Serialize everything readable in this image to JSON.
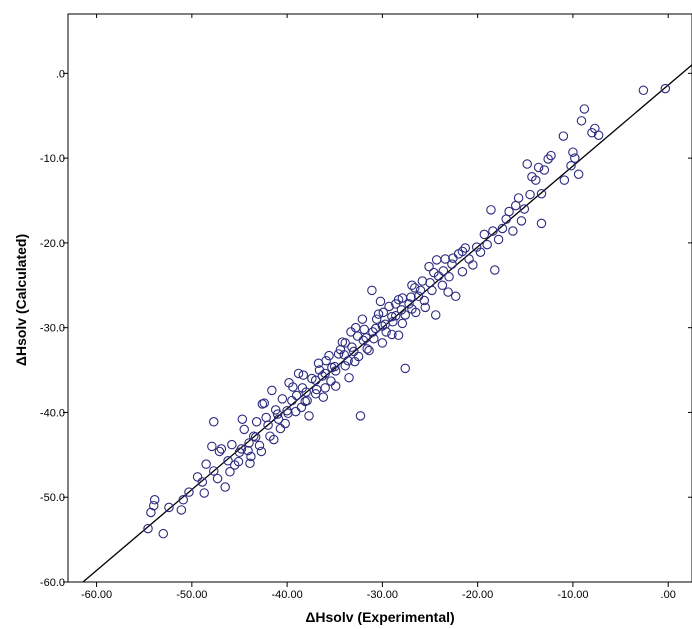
{
  "chart_data": {
    "type": "scatter",
    "xlabel": "ΔHsolv (Experimental)",
    "ylabel": "ΔHsolv (Calculated)",
    "xlim": [
      -63,
      2.5
    ],
    "ylim": [
      -60,
      7
    ],
    "x_ticks": [
      -60,
      -50,
      -40,
      -30,
      -20,
      -10,
      0
    ],
    "x_tick_labels": [
      "-60.00",
      "-50.00",
      "-40.00",
      "-30.00",
      "-20.00",
      "-10.00",
      ".00"
    ],
    "y_ticks": [
      0,
      -10,
      -20,
      -30,
      -40,
      -50,
      -60
    ],
    "y_tick_labels": [
      ".0",
      "-10.0",
      "-20.0",
      "-30.0",
      "-40.0",
      "-50.0",
      "-60.0"
    ],
    "fit_line": {
      "x": [
        -63,
        2.5
      ],
      "y": [
        -61.5,
        1.0
      ]
    },
    "marker": "open-circle",
    "marker_color": "#2b2b7f",
    "line_color": "#000000",
    "background": "#ffffff",
    "grid": false,
    "series": [
      {
        "points": [
          [
            -54.6,
            -53.7
          ],
          [
            -54.3,
            -51.8
          ],
          [
            -54.0,
            -51.0
          ],
          [
            -53.9,
            -50.3
          ],
          [
            -53.0,
            -54.3
          ],
          [
            -52.4,
            -51.2
          ],
          [
            -51.1,
            -51.5
          ],
          [
            -50.9,
            -50.3
          ],
          [
            -50.3,
            -49.4
          ],
          [
            -49.4,
            -47.6
          ],
          [
            -48.9,
            -48.2
          ],
          [
            -48.7,
            -49.5
          ],
          [
            -48.5,
            -46.1
          ],
          [
            -47.7,
            -46.9
          ],
          [
            -47.3,
            -47.8
          ],
          [
            -47.9,
            -44.0
          ],
          [
            -47.7,
            -41.1
          ],
          [
            -47.1,
            -44.6
          ],
          [
            -46.9,
            -44.3
          ],
          [
            -46.5,
            -48.8
          ],
          [
            -46.0,
            -47.0
          ],
          [
            -45.8,
            -43.8
          ],
          [
            -45.5,
            -46.2
          ],
          [
            -45.1,
            -45.8
          ],
          [
            -44.8,
            -44.3
          ],
          [
            -44.5,
            -42.0
          ],
          [
            -44.1,
            -44.5
          ],
          [
            -43.9,
            -46.0
          ],
          [
            -43.5,
            -42.8
          ],
          [
            -43.2,
            -41.1
          ],
          [
            -42.9,
            -43.9
          ],
          [
            -42.6,
            -39.0
          ],
          [
            -42.2,
            -40.6
          ],
          [
            -41.8,
            -42.8
          ],
          [
            -41.6,
            -37.4
          ],
          [
            -41.2,
            -39.7
          ],
          [
            -40.9,
            -40.8
          ],
          [
            -40.5,
            -38.4
          ],
          [
            -40.2,
            -41.3
          ],
          [
            -39.8,
            -36.5
          ],
          [
            -39.5,
            -38.6
          ],
          [
            -39.1,
            -39.9
          ],
          [
            -38.8,
            -35.4
          ],
          [
            -38.4,
            -37.1
          ],
          [
            -38.1,
            -38.7
          ],
          [
            -37.7,
            -40.4
          ],
          [
            -37.4,
            -36.0
          ],
          [
            -37.0,
            -37.8
          ],
          [
            -36.7,
            -34.2
          ],
          [
            -36.3,
            -35.7
          ],
          [
            -36.0,
            -37.1
          ],
          [
            -35.6,
            -33.3
          ],
          [
            -35.3,
            -34.7
          ],
          [
            -34.9,
            -36.9
          ],
          [
            -34.6,
            -33.1
          ],
          [
            -34.2,
            -31.7
          ],
          [
            -33.9,
            -34.5
          ],
          [
            -33.5,
            -35.9
          ],
          [
            -33.2,
            -32.3
          ],
          [
            -32.8,
            -30.0
          ],
          [
            -32.5,
            -33.4
          ],
          [
            -32.3,
            -40.4
          ],
          [
            -32.1,
            -29.0
          ],
          [
            -31.7,
            -31.2
          ],
          [
            -31.4,
            -32.7
          ],
          [
            -31.1,
            -25.6
          ],
          [
            -30.7,
            -30.1
          ],
          [
            -30.4,
            -28.4
          ],
          [
            -30.0,
            -31.8
          ],
          [
            -29.7,
            -29.6
          ],
          [
            -29.3,
            -27.5
          ],
          [
            -29.0,
            -30.8
          ],
          [
            -28.6,
            -28.6
          ],
          [
            -28.3,
            -26.7
          ],
          [
            -27.9,
            -29.5
          ],
          [
            -27.6,
            -34.8
          ],
          [
            -27.2,
            -27.2
          ],
          [
            -26.9,
            -25.0
          ],
          [
            -26.5,
            -28.2
          ],
          [
            -26.2,
            -26.3
          ],
          [
            -25.8,
            -24.5
          ],
          [
            -25.5,
            -27.6
          ],
          [
            -25.1,
            -22.8
          ],
          [
            -24.8,
            -25.6
          ],
          [
            -24.4,
            -28.5
          ],
          [
            -24.1,
            -23.9
          ],
          [
            -23.7,
            -25.0
          ],
          [
            -23.4,
            -21.9
          ],
          [
            -23.0,
            -24.0
          ],
          [
            -22.7,
            -22.5
          ],
          [
            -22.3,
            -26.3
          ],
          [
            -22.0,
            -21.3
          ],
          [
            -21.6,
            -23.4
          ],
          [
            -21.3,
            -20.6
          ],
          [
            -20.9,
            -21.9
          ],
          [
            -20.5,
            -22.6
          ],
          [
            -20.1,
            -20.5
          ],
          [
            -19.7,
            -21.1
          ],
          [
            -19.3,
            -19.0
          ],
          [
            -19.0,
            -20.2
          ],
          [
            -18.6,
            -16.1
          ],
          [
            -18.4,
            -18.6
          ],
          [
            -18.2,
            -23.2
          ],
          [
            -17.8,
            -19.6
          ],
          [
            -17.4,
            -18.3
          ],
          [
            -17.0,
            -17.2
          ],
          [
            -16.7,
            -16.3
          ],
          [
            -16.3,
            -18.6
          ],
          [
            -16.0,
            -15.6
          ],
          [
            -15.7,
            -14.7
          ],
          [
            -15.4,
            -17.4
          ],
          [
            -15.1,
            -16.0
          ],
          [
            -14.8,
            -10.7
          ],
          [
            -14.5,
            -14.3
          ],
          [
            -14.3,
            -12.2
          ],
          [
            -13.9,
            -12.6
          ],
          [
            -13.6,
            -11.1
          ],
          [
            -13.3,
            -14.2
          ],
          [
            -13.3,
            -17.7
          ],
          [
            -13.0,
            -11.4
          ],
          [
            -12.6,
            -10.1
          ],
          [
            -12.3,
            -9.7
          ],
          [
            -11.0,
            -7.4
          ],
          [
            -10.9,
            -12.6
          ],
          [
            -10.2,
            -10.9
          ],
          [
            -10.0,
            -9.3
          ],
          [
            -9.8,
            -10.0
          ],
          [
            -9.4,
            -11.9
          ],
          [
            -9.1,
            -5.6
          ],
          [
            -8.8,
            -4.2
          ],
          [
            -8.0,
            -7.0
          ],
          [
            -7.7,
            -6.5
          ],
          [
            -7.3,
            -7.3
          ],
          [
            -2.6,
            -2.0
          ],
          [
            -0.3,
            -1.8
          ],
          [
            -42.0,
            -41.5
          ],
          [
            -41.0,
            -40.2
          ],
          [
            -40.0,
            -39.8
          ],
          [
            -39.0,
            -38.0
          ],
          [
            -38.0,
            -37.6
          ],
          [
            -37.0,
            -36.2
          ],
          [
            -36.0,
            -35.4
          ],
          [
            -35.0,
            -34.6
          ],
          [
            -34.0,
            -33.2
          ],
          [
            -33.0,
            -32.8
          ],
          [
            -32.0,
            -31.5
          ],
          [
            -31.0,
            -30.5
          ],
          [
            -30.0,
            -29.8
          ],
          [
            -29.0,
            -28.7
          ],
          [
            -28.0,
            -27.9
          ],
          [
            -27.0,
            -26.4
          ],
          [
            -26.0,
            -25.6
          ],
          [
            -25.0,
            -24.7
          ],
          [
            -43.3,
            -42.9
          ],
          [
            -44.0,
            -43.6
          ],
          [
            -45.0,
            -44.7
          ],
          [
            -46.2,
            -45.7
          ],
          [
            -39.4,
            -37.0
          ],
          [
            -38.5,
            -39.4
          ],
          [
            -36.6,
            -35.0
          ],
          [
            -35.4,
            -36.3
          ],
          [
            -34.4,
            -32.6
          ],
          [
            -33.6,
            -33.9
          ],
          [
            -32.6,
            -31.0
          ],
          [
            -31.6,
            -32.5
          ],
          [
            -30.6,
            -29.0
          ],
          [
            -29.6,
            -30.5
          ],
          [
            -28.6,
            -27.2
          ],
          [
            -27.6,
            -28.5
          ],
          [
            -26.6,
            -25.3
          ],
          [
            -25.6,
            -26.8
          ],
          [
            -24.6,
            -23.5
          ],
          [
            -23.6,
            -23.3
          ],
          [
            -22.6,
            -21.8
          ],
          [
            -21.6,
            -21.0
          ],
          [
            -40.7,
            -41.9
          ],
          [
            -39.9,
            -40.1
          ],
          [
            -37.9,
            -38.6
          ],
          [
            -36.9,
            -37.3
          ],
          [
            -35.9,
            -33.9
          ],
          [
            -34.9,
            -35.1
          ],
          [
            -33.9,
            -31.8
          ],
          [
            -32.9,
            -34.0
          ],
          [
            -31.9,
            -30.2
          ],
          [
            -30.9,
            -31.3
          ],
          [
            -29.9,
            -28.2
          ],
          [
            -28.9,
            -29.3
          ],
          [
            -27.9,
            -26.5
          ],
          [
            -26.9,
            -27.8
          ],
          [
            -43.8,
            -45.2
          ],
          [
            -42.4,
            -38.9
          ],
          [
            -41.4,
            -43.2
          ],
          [
            -36.2,
            -38.2
          ],
          [
            -30.2,
            -26.9
          ],
          [
            -44.7,
            -40.8
          ],
          [
            -42.7,
            -44.6
          ],
          [
            -38.3,
            -35.6
          ],
          [
            -33.3,
            -30.5
          ],
          [
            -28.3,
            -30.9
          ],
          [
            -24.3,
            -22.0
          ],
          [
            -23.1,
            -25.8
          ]
        ]
      }
    ]
  }
}
